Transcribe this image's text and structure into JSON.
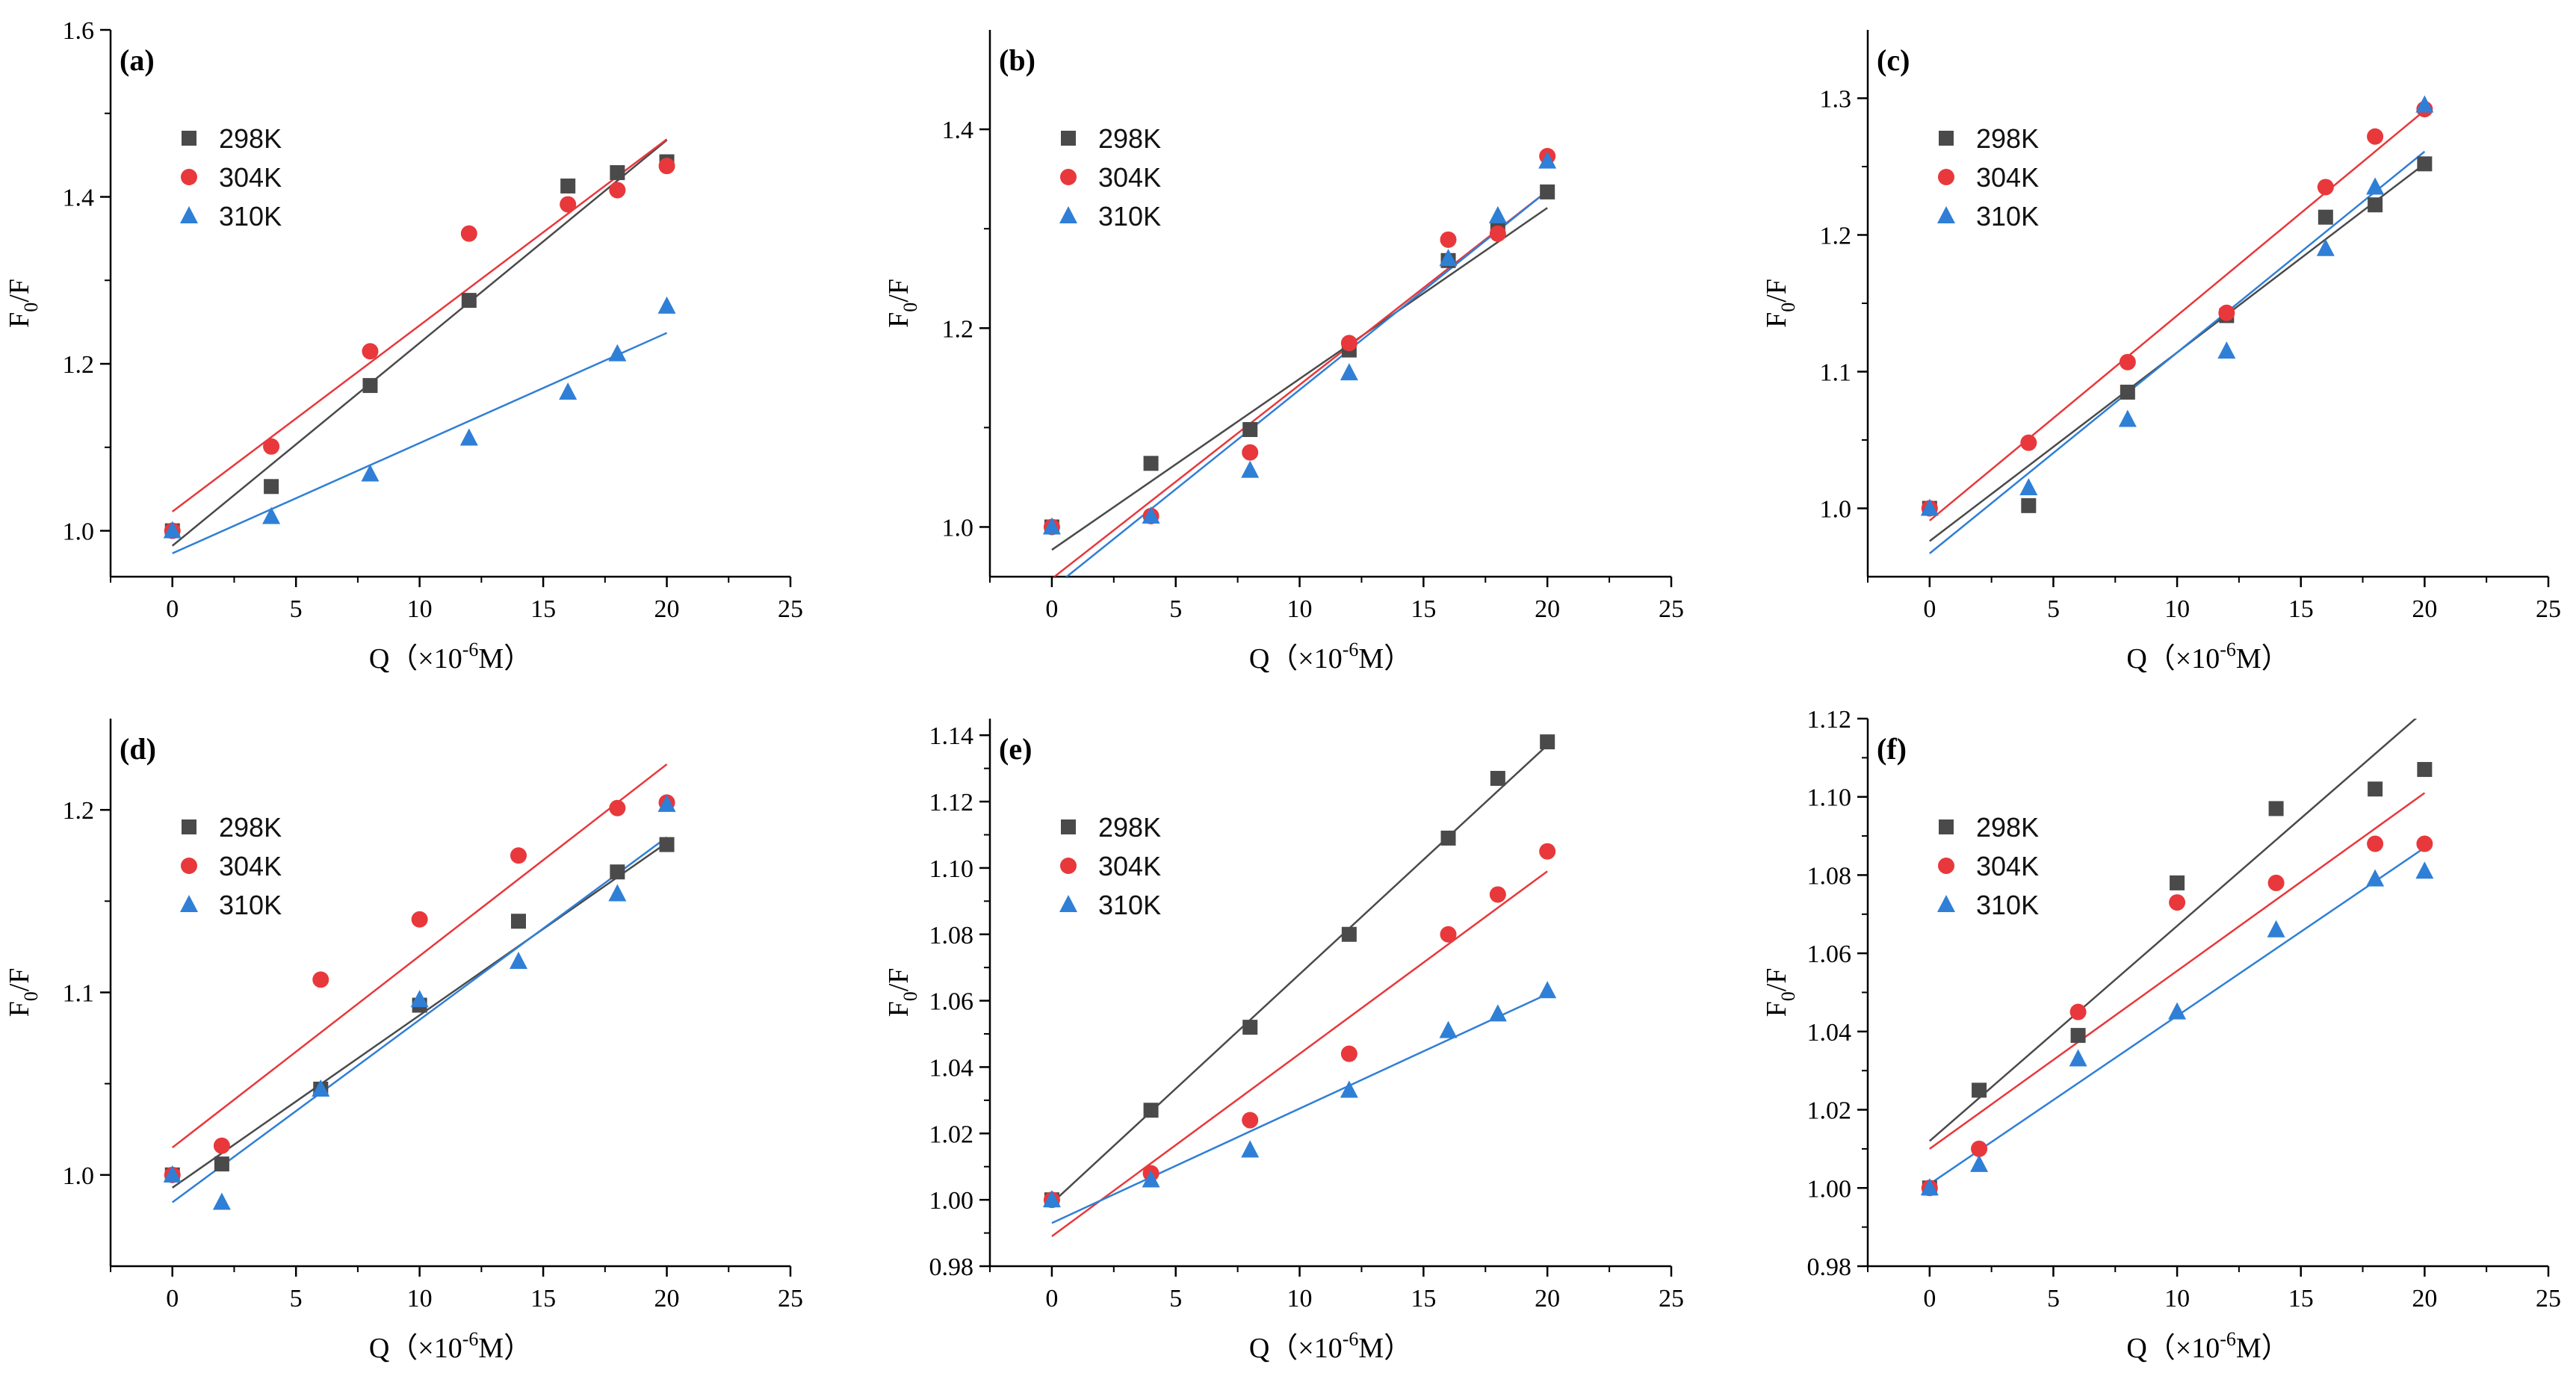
{
  "figure": {
    "colors": {
      "298K": "#4a4a4a",
      "304K": "#e8383b",
      "310K": "#2f7fd6"
    },
    "legend_markers": {
      "298K": "square",
      "304K": "circle",
      "310K": "triangle"
    }
  },
  "chart_data": [
    {
      "type": "scatter",
      "panel": "(a)",
      "xlabel": "Q（×10",
      "xlabel_exp": "-6",
      "xlabel_unit": "M）",
      "ylabel": "F",
      "ylabel_sub": "0",
      "ylabel_rest": "/F",
      "xlim": [
        -2.5,
        25
      ],
      "ylim": [
        0.945,
        1.6
      ],
      "xticks": [
        0,
        5,
        10,
        15,
        20,
        25
      ],
      "xtick_labels": [
        "0",
        "5",
        "10",
        "15",
        "20",
        "25"
      ],
      "yticks": [
        1.0,
        1.2,
        1.4,
        1.6
      ],
      "ytick_labels": [
        "1.0",
        "1.2",
        "1.4",
        "1.6"
      ],
      "legend": [
        "298K",
        "304K",
        "310K"
      ],
      "series": [
        {
          "name": "298K",
          "x": [
            0,
            4,
            8,
            12,
            16,
            18,
            20
          ],
          "y": [
            1.0,
            1.053,
            1.174,
            1.276,
            1.413,
            1.429,
            1.442
          ],
          "fit": [
            0.982,
            0.0243
          ]
        },
        {
          "name": "304K",
          "x": [
            0,
            4,
            8,
            12,
            16,
            18,
            20
          ],
          "y": [
            1.0,
            1.101,
            1.215,
            1.356,
            1.391,
            1.408,
            1.437
          ],
          "fit": [
            1.023,
            0.0223
          ]
        },
        {
          "name": "310K",
          "x": [
            0,
            4,
            8,
            12,
            16,
            18,
            20
          ],
          "y": [
            1.0,
            1.017,
            1.068,
            1.111,
            1.166,
            1.212,
            1.269
          ],
          "fit": [
            0.973,
            0.0132
          ]
        }
      ]
    },
    {
      "type": "scatter",
      "panel": "(b)",
      "xlabel": "Q（×10",
      "xlabel_exp": "-6",
      "xlabel_unit": "M）",
      "ylabel": "F",
      "ylabel_sub": "0",
      "ylabel_rest": "/F",
      "xlim": [
        -2.5,
        25
      ],
      "ylim": [
        0.95,
        1.5
      ],
      "xticks": [
        0,
        5,
        10,
        15,
        20,
        25
      ],
      "xtick_labels": [
        "0",
        "5",
        "10",
        "15",
        "20",
        "25"
      ],
      "yticks": [
        1.0,
        1.2,
        1.4
      ],
      "ytick_labels": [
        "1.0",
        "1.2",
        "1.4"
      ],
      "legend": [
        "298K",
        "304K",
        "310K"
      ],
      "series": [
        {
          "name": "298K",
          "x": [
            0,
            4,
            8,
            12,
            16,
            18,
            20
          ],
          "y": [
            1.0,
            1.064,
            1.098,
            1.178,
            1.268,
            1.3,
            1.337
          ],
          "fit": [
            0.977,
            0.0172
          ]
        },
        {
          "name": "304K",
          "x": [
            0,
            4,
            8,
            12,
            16,
            18,
            20
          ],
          "y": [
            1.0,
            1.011,
            1.075,
            1.185,
            1.289,
            1.295,
            1.373
          ],
          "fit": [
            0.948,
            0.0195
          ]
        },
        {
          "name": "310K",
          "x": [
            0,
            4,
            8,
            12,
            16,
            18,
            20
          ],
          "y": [
            1.0,
            1.011,
            1.057,
            1.155,
            1.27,
            1.313,
            1.368
          ],
          "fit": [
            0.938,
            0.02
          ]
        }
      ]
    },
    {
      "type": "scatter",
      "panel": "(c)",
      "xlabel": "Q（×10",
      "xlabel_exp": "-6",
      "xlabel_unit": "M）",
      "ylabel": "F",
      "ylabel_sub": "0",
      "ylabel_rest": "/F",
      "xlim": [
        -2.5,
        25
      ],
      "ylim": [
        0.95,
        1.35
      ],
      "xticks": [
        0,
        5,
        10,
        15,
        20,
        25
      ],
      "xtick_labels": [
        "0",
        "5",
        "10",
        "15",
        "20",
        "25"
      ],
      "yticks": [
        1.0,
        1.1,
        1.2,
        1.3
      ],
      "ytick_labels": [
        "1.0",
        "1.1",
        "1.2",
        "1.3"
      ],
      "legend": [
        "298K",
        "304K",
        "310K"
      ],
      "series": [
        {
          "name": "298K",
          "x": [
            0,
            4,
            8,
            12,
            16,
            18,
            20
          ],
          "y": [
            1.0,
            1.002,
            1.085,
            1.141,
            1.213,
            1.222,
            1.252
          ],
          "fit": [
            0.976,
            0.0138
          ]
        },
        {
          "name": "304K",
          "x": [
            0,
            4,
            8,
            12,
            16,
            18,
            20
          ],
          "y": [
            1.0,
            1.048,
            1.107,
            1.143,
            1.235,
            1.272,
            1.292
          ],
          "fit": [
            0.991,
            0.015
          ]
        },
        {
          "name": "310K",
          "x": [
            0,
            4,
            8,
            12,
            16,
            18,
            20
          ],
          "y": [
            1.0,
            1.015,
            1.065,
            1.115,
            1.19,
            1.235,
            1.295
          ],
          "fit": [
            0.967,
            0.0147
          ]
        }
      ]
    },
    {
      "type": "scatter",
      "panel": "(d)",
      "xlabel": "Q（×10",
      "xlabel_exp": "-6",
      "xlabel_unit": "M）",
      "ylabel": "F",
      "ylabel_sub": "0",
      "ylabel_rest": "/F",
      "xlim": [
        -2.5,
        25
      ],
      "ylim": [
        0.95,
        1.25
      ],
      "xticks": [
        0,
        5,
        10,
        15,
        20,
        25
      ],
      "xtick_labels": [
        "0",
        "5",
        "10",
        "15",
        "20",
        "25"
      ],
      "yticks": [
        1.0,
        1.1,
        1.2
      ],
      "ytick_labels": [
        "1.0",
        "1.1",
        "1.2"
      ],
      "legend": [
        "298K",
        "304K",
        "310K"
      ],
      "series": [
        {
          "name": "298K",
          "x": [
            0,
            2,
            6,
            10,
            14,
            18,
            20
          ],
          "y": [
            1.0,
            1.006,
            1.047,
            1.093,
            1.139,
            1.166,
            1.181
          ],
          "fit": [
            0.993,
            0.00945
          ]
        },
        {
          "name": "304K",
          "x": [
            0,
            2,
            6,
            10,
            14,
            18,
            20
          ],
          "y": [
            1.0,
            1.016,
            1.107,
            1.14,
            1.175,
            1.201,
            1.204
          ],
          "fit": [
            1.015,
            0.0105
          ]
        },
        {
          "name": "310K",
          "x": [
            0,
            2,
            6,
            10,
            14,
            18,
            20
          ],
          "y": [
            1.0,
            0.985,
            1.047,
            1.096,
            1.117,
            1.154,
            1.203
          ],
          "fit": [
            0.985,
            0.01
          ]
        }
      ]
    },
    {
      "type": "scatter",
      "panel": "(e)",
      "xlabel": "Q（×10",
      "xlabel_exp": "-6",
      "xlabel_unit": "M）",
      "ylabel": "F",
      "ylabel_sub": "0",
      "ylabel_rest": "/F",
      "xlim": [
        -2.5,
        25
      ],
      "ylim": [
        0.98,
        1.145
      ],
      "xticks": [
        0,
        5,
        10,
        15,
        20,
        25
      ],
      "xtick_labels": [
        "0",
        "5",
        "10",
        "15",
        "20",
        "25"
      ],
      "yticks": [
        0.98,
        1.0,
        1.02,
        1.04,
        1.06,
        1.08,
        1.1,
        1.12,
        1.14
      ],
      "ytick_labels": [
        "0.98",
        "1.00",
        "1.02",
        "1.04",
        "1.06",
        "1.08",
        "1.10",
        "1.12",
        "1.14"
      ],
      "legend": [
        "298K",
        "304K",
        "310K"
      ],
      "series": [
        {
          "name": "298K",
          "x": [
            0,
            4,
            8,
            12,
            16,
            18,
            20
          ],
          "y": [
            1.0,
            1.027,
            1.052,
            1.08,
            1.109,
            1.127,
            1.138
          ],
          "fit": [
            0.999,
            0.0069
          ]
        },
        {
          "name": "304K",
          "x": [
            0,
            4,
            8,
            12,
            16,
            18,
            20
          ],
          "y": [
            1.0,
            1.008,
            1.024,
            1.044,
            1.08,
            1.092,
            1.105
          ],
          "fit": [
            0.989,
            0.0055
          ]
        },
        {
          "name": "310K",
          "x": [
            0,
            4,
            8,
            12,
            16,
            18,
            20
          ],
          "y": [
            1.0,
            1.006,
            1.015,
            1.033,
            1.051,
            1.056,
            1.063
          ],
          "fit": [
            0.993,
            0.00345
          ]
        }
      ]
    },
    {
      "type": "scatter",
      "panel": "(f)",
      "xlabel": "Q（×10",
      "xlabel_exp": "-6",
      "xlabel_unit": "M）",
      "ylabel": "F",
      "ylabel_sub": "0",
      "ylabel_rest": "/F",
      "xlim": [
        -2.5,
        25
      ],
      "ylim": [
        0.98,
        1.12
      ],
      "xticks": [
        0,
        5,
        10,
        15,
        20,
        25
      ],
      "xtick_labels": [
        "0",
        "5",
        "10",
        "15",
        "20",
        "25"
      ],
      "yticks": [
        0.98,
        1.0,
        1.02,
        1.04,
        1.06,
        1.08,
        1.1,
        1.12
      ],
      "ytick_labels": [
        "0.98",
        "1.00",
        "1.02",
        "1.04",
        "1.06",
        "1.08",
        "1.10",
        "1.12"
      ],
      "legend": [
        "298K",
        "304K",
        "310K"
      ],
      "series": [
        {
          "name": "298K",
          "x": [
            0,
            2,
            6,
            10,
            14,
            18,
            20
          ],
          "y": [
            1.0,
            1.025,
            1.039,
            1.078,
            1.097,
            1.102,
            1.107
          ],
          "fit": [
            1.012,
            0.0055
          ]
        },
        {
          "name": "304K",
          "x": [
            0,
            2,
            6,
            10,
            14,
            18,
            20
          ],
          "y": [
            1.0,
            1.01,
            1.045,
            1.073,
            1.078,
            1.088,
            1.088
          ],
          "fit": [
            1.01,
            0.00455
          ]
        },
        {
          "name": "310K",
          "x": [
            0,
            2,
            6,
            10,
            14,
            18,
            20
          ],
          "y": [
            1.0,
            1.006,
            1.033,
            1.045,
            1.066,
            1.079,
            1.081
          ],
          "fit": [
            1.001,
            0.0043
          ]
        }
      ]
    }
  ]
}
